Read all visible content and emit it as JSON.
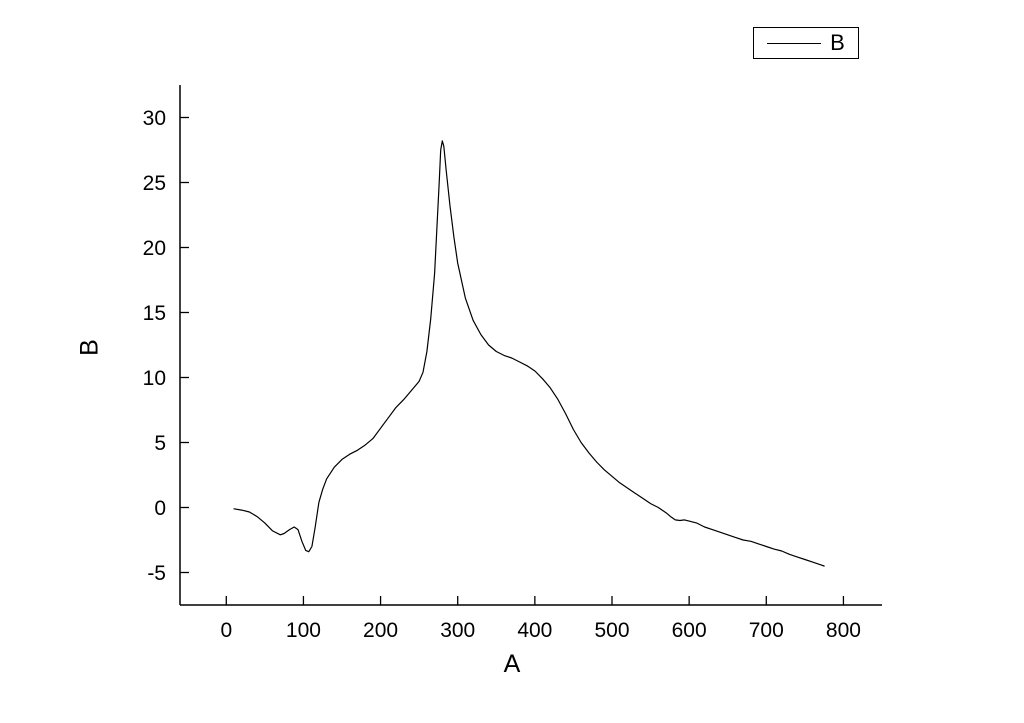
{
  "chart_data": {
    "type": "line",
    "title": "",
    "xlabel": "A",
    "ylabel": "B",
    "legend": [
      "B"
    ],
    "legend_position": "top-right",
    "grid": false,
    "line_color": "#000000",
    "background_color": "#ffffff",
    "xlim": [
      -60,
      850
    ],
    "ylim": [
      -7.5,
      32.5
    ],
    "x_ticks": [
      0,
      100,
      200,
      300,
      400,
      500,
      600,
      700,
      800
    ],
    "y_ticks": [
      -5,
      0,
      5,
      10,
      15,
      20,
      25,
      30
    ],
    "series": [
      {
        "name": "B",
        "points": [
          [
            10,
            -0.1
          ],
          [
            20,
            -0.2
          ],
          [
            30,
            -0.35
          ],
          [
            40,
            -0.7
          ],
          [
            50,
            -1.2
          ],
          [
            60,
            -1.8
          ],
          [
            70,
            -2.1
          ],
          [
            75,
            -2.0
          ],
          [
            82,
            -1.7
          ],
          [
            88,
            -1.5
          ],
          [
            93,
            -1.7
          ],
          [
            98,
            -2.6
          ],
          [
            103,
            -3.3
          ],
          [
            107,
            -3.4
          ],
          [
            111,
            -3.0
          ],
          [
            115,
            -1.6
          ],
          [
            120,
            0.4
          ],
          [
            125,
            1.4
          ],
          [
            130,
            2.2
          ],
          [
            140,
            3.1
          ],
          [
            150,
            3.7
          ],
          [
            160,
            4.1
          ],
          [
            170,
            4.4
          ],
          [
            180,
            4.8
          ],
          [
            190,
            5.3
          ],
          [
            200,
            6.1
          ],
          [
            210,
            6.9
          ],
          [
            220,
            7.7
          ],
          [
            230,
            8.3
          ],
          [
            240,
            9.0
          ],
          [
            250,
            9.7
          ],
          [
            255,
            10.4
          ],
          [
            260,
            12.0
          ],
          [
            265,
            14.5
          ],
          [
            270,
            18.0
          ],
          [
            273,
            21.5
          ],
          [
            276,
            25.0
          ],
          [
            278,
            27.5
          ],
          [
            280,
            28.2
          ],
          [
            282,
            27.8
          ],
          [
            285,
            26.0
          ],
          [
            290,
            23.2
          ],
          [
            295,
            20.8
          ],
          [
            300,
            18.8
          ],
          [
            310,
            16.1
          ],
          [
            320,
            14.4
          ],
          [
            330,
            13.3
          ],
          [
            340,
            12.5
          ],
          [
            350,
            12.0
          ],
          [
            360,
            11.7
          ],
          [
            370,
            11.5
          ],
          [
            380,
            11.2
          ],
          [
            390,
            10.9
          ],
          [
            400,
            10.5
          ],
          [
            410,
            9.9
          ],
          [
            420,
            9.2
          ],
          [
            430,
            8.3
          ],
          [
            440,
            7.2
          ],
          [
            450,
            6.0
          ],
          [
            460,
            5.0
          ],
          [
            470,
            4.2
          ],
          [
            480,
            3.5
          ],
          [
            490,
            2.9
          ],
          [
            500,
            2.4
          ],
          [
            510,
            1.9
          ],
          [
            520,
            1.5
          ],
          [
            530,
            1.1
          ],
          [
            540,
            0.7
          ],
          [
            550,
            0.3
          ],
          [
            560,
            0.0
          ],
          [
            570,
            -0.4
          ],
          [
            576,
            -0.7
          ],
          [
            582,
            -0.95
          ],
          [
            588,
            -1.0
          ],
          [
            594,
            -0.95
          ],
          [
            600,
            -1.05
          ],
          [
            610,
            -1.2
          ],
          [
            620,
            -1.5
          ],
          [
            630,
            -1.7
          ],
          [
            640,
            -1.9
          ],
          [
            650,
            -2.1
          ],
          [
            660,
            -2.3
          ],
          [
            670,
            -2.5
          ],
          [
            680,
            -2.6
          ],
          [
            690,
            -2.8
          ],
          [
            700,
            -3.0
          ],
          [
            710,
            -3.2
          ],
          [
            720,
            -3.35
          ],
          [
            730,
            -3.6
          ],
          [
            740,
            -3.8
          ],
          [
            750,
            -4.0
          ],
          [
            760,
            -4.2
          ],
          [
            770,
            -4.4
          ],
          [
            775,
            -4.5
          ]
        ]
      }
    ]
  }
}
